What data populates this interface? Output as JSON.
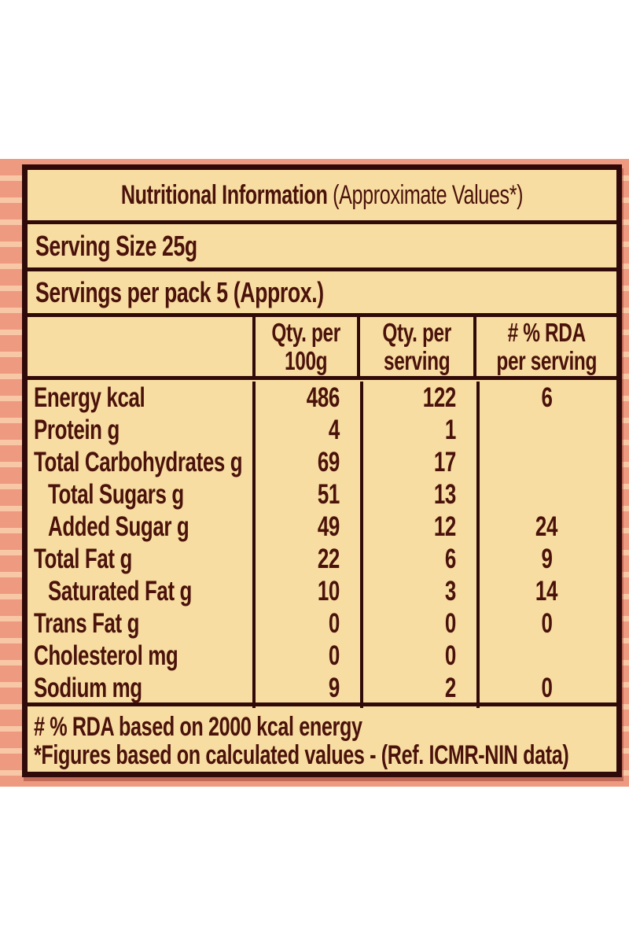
{
  "panel": {
    "colors": {
      "cream": "#f8dda2",
      "text": "#4a120b",
      "border": "#300a08",
      "stripe_dark": "#ee9a80",
      "stripe_light": "#f7c7a6",
      "page_bg": "#ffffff"
    },
    "title": {
      "bold": "Nutritional Information",
      "regular": "(Approximate Values*)"
    },
    "serving_size": "Serving Size 25g",
    "servings_per_pack": "Servings per pack 5 (Approx.)",
    "columns": {
      "qty_per_100g": "Qty. per\n100g",
      "qty_per_serving": "Qty. per\nserving",
      "rda_per_serving": "# % RDA\nper serving"
    },
    "rows": [
      {
        "label": "Energy kcal",
        "per100": "486",
        "serving": "122",
        "rda": "6"
      },
      {
        "label": "Protein g",
        "per100": "4",
        "serving": "1",
        "rda": ""
      },
      {
        "label": "Total Carbohydrates g",
        "per100": "69",
        "serving": "17",
        "rda": ""
      },
      {
        "label": "Total Sugars g",
        "per100": "51",
        "serving": "13",
        "rda": ""
      },
      {
        "label": "Added Sugar g",
        "per100": "49",
        "serving": "12",
        "rda": "24"
      },
      {
        "label": "Total Fat g",
        "per100": "22",
        "serving": "6",
        "rda": "9"
      },
      {
        "label": "Saturated Fat g",
        "per100": "10",
        "serving": "3",
        "rda": "14"
      },
      {
        "label": "Trans Fat g",
        "per100": "0",
        "serving": "0",
        "rda": "0"
      },
      {
        "label": "Cholesterol mg",
        "per100": "0",
        "serving": "0",
        "rda": ""
      },
      {
        "label": "Sodium mg",
        "per100": "9",
        "serving": "2",
        "rda": "0"
      }
    ],
    "footnotes": [
      "# % RDA based on 2000 kcal energy",
      "*Figures based on calculated values - (Ref. ICMR-NIN data)"
    ]
  }
}
